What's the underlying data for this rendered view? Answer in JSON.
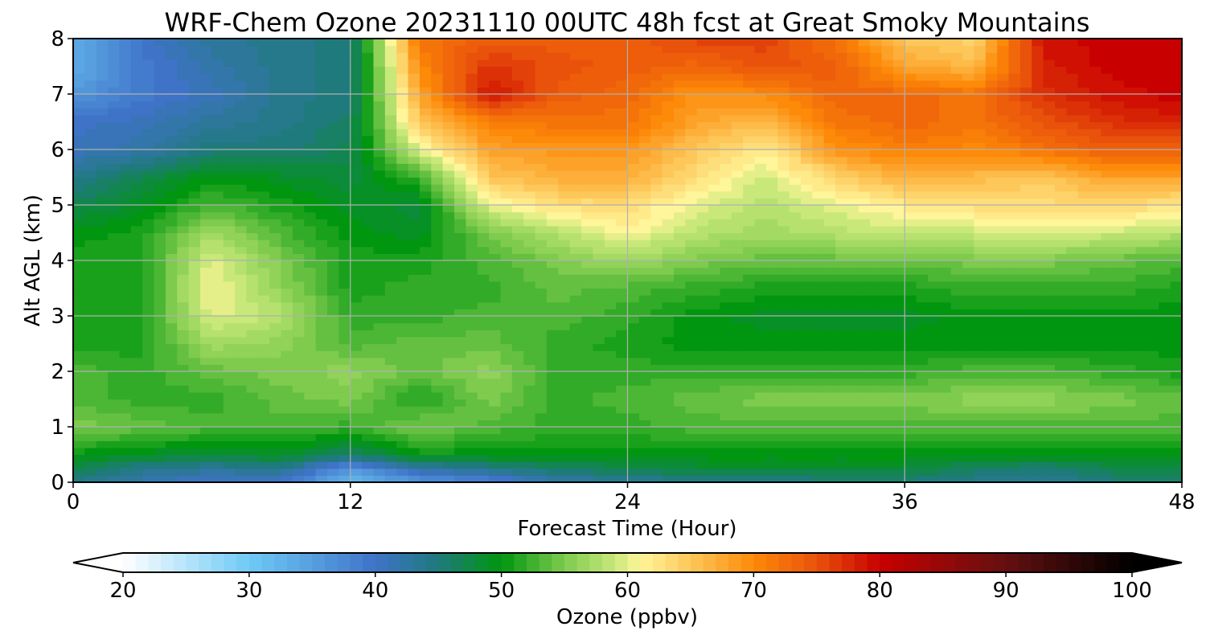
{
  "chart_data": {
    "type": "heatmap",
    "title": "WRF-Chem Ozone  20231110 00UTC 48h fcst at Great Smoky Mountains",
    "xlabel": "Forecast Time (Hour)",
    "ylabel": "Alt AGL (km)",
    "xlim": [
      0,
      48
    ],
    "ylim": [
      0,
      8
    ],
    "xticks": [
      0,
      12,
      24,
      36,
      48
    ],
    "yticks": [
      0,
      1,
      2,
      3,
      4,
      5,
      6,
      7,
      8
    ],
    "grid": true,
    "x": [
      0,
      3,
      6,
      9,
      12,
      15,
      18,
      21,
      24,
      27,
      30,
      33,
      36,
      39,
      42,
      45,
      48
    ],
    "y": [
      0,
      0.25,
      0.5,
      1,
      1.5,
      2,
      2.5,
      3,
      3.5,
      4,
      4.5,
      5,
      5.5,
      6,
      6.5,
      7,
      7.5,
      8
    ],
    "z": [
      [
        44,
        42,
        40,
        40,
        32,
        36,
        38,
        42,
        43,
        44,
        44,
        45,
        45,
        44,
        43,
        45,
        46
      ],
      [
        47,
        44,
        43,
        44,
        36,
        42,
        44,
        46,
        47,
        48,
        48,
        48,
        48,
        46,
        45,
        47,
        48
      ],
      [
        50,
        49,
        48,
        49,
        46,
        50,
        50,
        50,
        50,
        50,
        50,
        50,
        50,
        50,
        50,
        50,
        50
      ],
      [
        55,
        54,
        53,
        53,
        52,
        55,
        53,
        52,
        52,
        53,
        53,
        53,
        53,
        53,
        53,
        53,
        53
      ],
      [
        53,
        52,
        52,
        54,
        55,
        51,
        55,
        52,
        53,
        54,
        55,
        55,
        55,
        56,
        56,
        55,
        54
      ],
      [
        53,
        52,
        54,
        55,
        56,
        54,
        56,
        52,
        52,
        52,
        52,
        52,
        52,
        53,
        53,
        52,
        51
      ],
      [
        51,
        51,
        57,
        56,
        53,
        54,
        54,
        52,
        51,
        50,
        50,
        50,
        50,
        50,
        50,
        50,
        50
      ],
      [
        51,
        51,
        60,
        58,
        52,
        52,
        53,
        53,
        52,
        50,
        49,
        49,
        49,
        50,
        50,
        50,
        50
      ],
      [
        51,
        51,
        61,
        56,
        51,
        52,
        52,
        54,
        53,
        52,
        51,
        51,
        51,
        52,
        52,
        52,
        51
      ],
      [
        51,
        51,
        60,
        55,
        51,
        51,
        53,
        55,
        57,
        55,
        54,
        54,
        54,
        55,
        55,
        54,
        53
      ],
      [
        50,
        51,
        57,
        53,
        50,
        49,
        55,
        58,
        61,
        58,
        57,
        58,
        59,
        59,
        60,
        59,
        58
      ],
      [
        47,
        49,
        53,
        51,
        49,
        48,
        60,
        63,
        63,
        60,
        58,
        60,
        62,
        63,
        63,
        64,
        62
      ],
      [
        44,
        47,
        50,
        49,
        48,
        52,
        65,
        67,
        67,
        63,
        59,
        64,
        67,
        66,
        65,
        68,
        68
      ],
      [
        41,
        42,
        45,
        45,
        47,
        60,
        68,
        69,
        69,
        65,
        62,
        69,
        71,
        70,
        72,
        74,
        74
      ],
      [
        40,
        41,
        43,
        44,
        46,
        65,
        71,
        72,
        72,
        68,
        66,
        72,
        73,
        72,
        75,
        77,
        78
      ],
      [
        36,
        39,
        41,
        44,
        45,
        68,
        79,
        74,
        73,
        69,
        70,
        73,
        73,
        72,
        77,
        79,
        80
      ],
      [
        33,
        39,
        42,
        44,
        45,
        70,
        77,
        75,
        74,
        73,
        75,
        74,
        68,
        66,
        78,
        80,
        80
      ],
      [
        34,
        40,
        43,
        44,
        45,
        72,
        74,
        74,
        74,
        76,
        76,
        72,
        65,
        64,
        79,
        80,
        80
      ]
    ],
    "colorbar": {
      "label": "Ozone  (ppbv)",
      "min": 20,
      "max": 100,
      "step": 1,
      "extend": "both",
      "tick_values": [
        20,
        30,
        40,
        50,
        60,
        70,
        80,
        90,
        100
      ],
      "tick_labels": [
        "20",
        "30",
        "40",
        "50",
        "60",
        "70",
        "80",
        "90",
        "100"
      ]
    },
    "color_stops": [
      {
        "value": 20,
        "color": "#ffffff"
      },
      {
        "value": 30,
        "color": "#6ecaf5"
      },
      {
        "value": 40,
        "color": "#3f73c8"
      },
      {
        "value": 45,
        "color": "#1f7a7c"
      },
      {
        "value": 50,
        "color": "#00960f"
      },
      {
        "value": 55,
        "color": "#7ecb4e"
      },
      {
        "value": 59,
        "color": "#c8e87a"
      },
      {
        "value": 61,
        "color": "#fff59a"
      },
      {
        "value": 65,
        "color": "#fdc75a"
      },
      {
        "value": 70,
        "color": "#fd8a08"
      },
      {
        "value": 75,
        "color": "#e9520b"
      },
      {
        "value": 80,
        "color": "#c80000"
      },
      {
        "value": 90,
        "color": "#641010"
      },
      {
        "value": 100,
        "color": "#000000"
      }
    ]
  }
}
